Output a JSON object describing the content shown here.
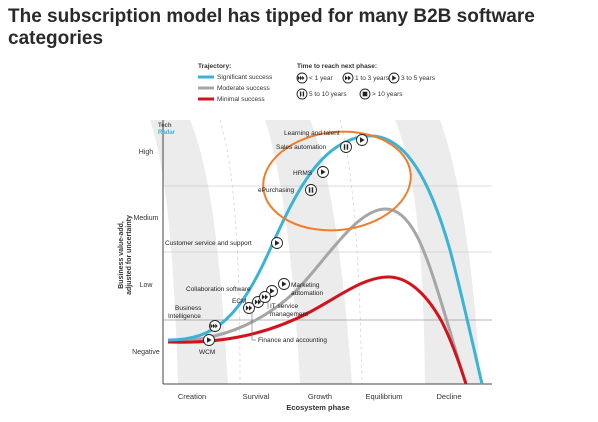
{
  "title": {
    "line1": "The subscription model has tipped for  many B2B software",
    "line2": "categories"
  },
  "legend": {
    "trajectory_title": "Trajectory:",
    "trajectories": [
      {
        "label": "Significant success",
        "color": "#3bb3d8"
      },
      {
        "label": "Moderate success",
        "color": "#a6a6a6"
      },
      {
        "label": "Minimal success",
        "color": "#d3131c"
      }
    ],
    "time_title": "Time to reach next phase:",
    "times": [
      {
        "icon": "fast-forward-three-icon",
        "label": "< 1 year"
      },
      {
        "icon": "fast-forward-icon",
        "label": "1 to 3 years"
      },
      {
        "icon": "play-icon",
        "label": "3 to 5 years"
      },
      {
        "icon": "pause-icon",
        "label": "5 to 10 years"
      },
      {
        "icon": "stop-icon",
        "label": "> 10 years"
      }
    ]
  },
  "brand": {
    "line1": "Tech",
    "line2": "Radar"
  },
  "y_axis": {
    "title_line1": "Business value-add,",
    "title_line2": "adjusted for uncertainty",
    "levels": [
      "High",
      "Medium",
      "Low",
      "Negative"
    ]
  },
  "x_axis": {
    "title": "Ecosystem phase",
    "phases": [
      "Creation",
      "Survival",
      "Growth",
      "Equilibrium",
      "Decline"
    ]
  },
  "highlight_color": "#f07d2a",
  "markers": [
    {
      "label": "Learning and talent",
      "icon": "play-icon"
    },
    {
      "label": "Sales automation",
      "icon": "pause-icon"
    },
    {
      "label": "HRMS",
      "icon": "play-icon"
    },
    {
      "label": "ePurchasing",
      "icon": "pause-icon"
    },
    {
      "label": "Customer service and support",
      "icon": "play-icon"
    },
    {
      "label": "Collaboration software",
      "icon": "play-icon"
    },
    {
      "label": "Marketing",
      "label2": "automation",
      "icon": "play-icon"
    },
    {
      "label": "ECM",
      "icon": "fast-forward-icon"
    },
    {
      "label": "IT service",
      "label2": "management",
      "icon": "fast-forward-icon"
    },
    {
      "label": "Business",
      "label2": "Intelligence",
      "icon": "fast-forward-three-icon"
    },
    {
      "label": "Finance and accounting",
      "icon": "fast-forward-icon"
    },
    {
      "label": "WCM",
      "icon": "play-icon"
    }
  ]
}
